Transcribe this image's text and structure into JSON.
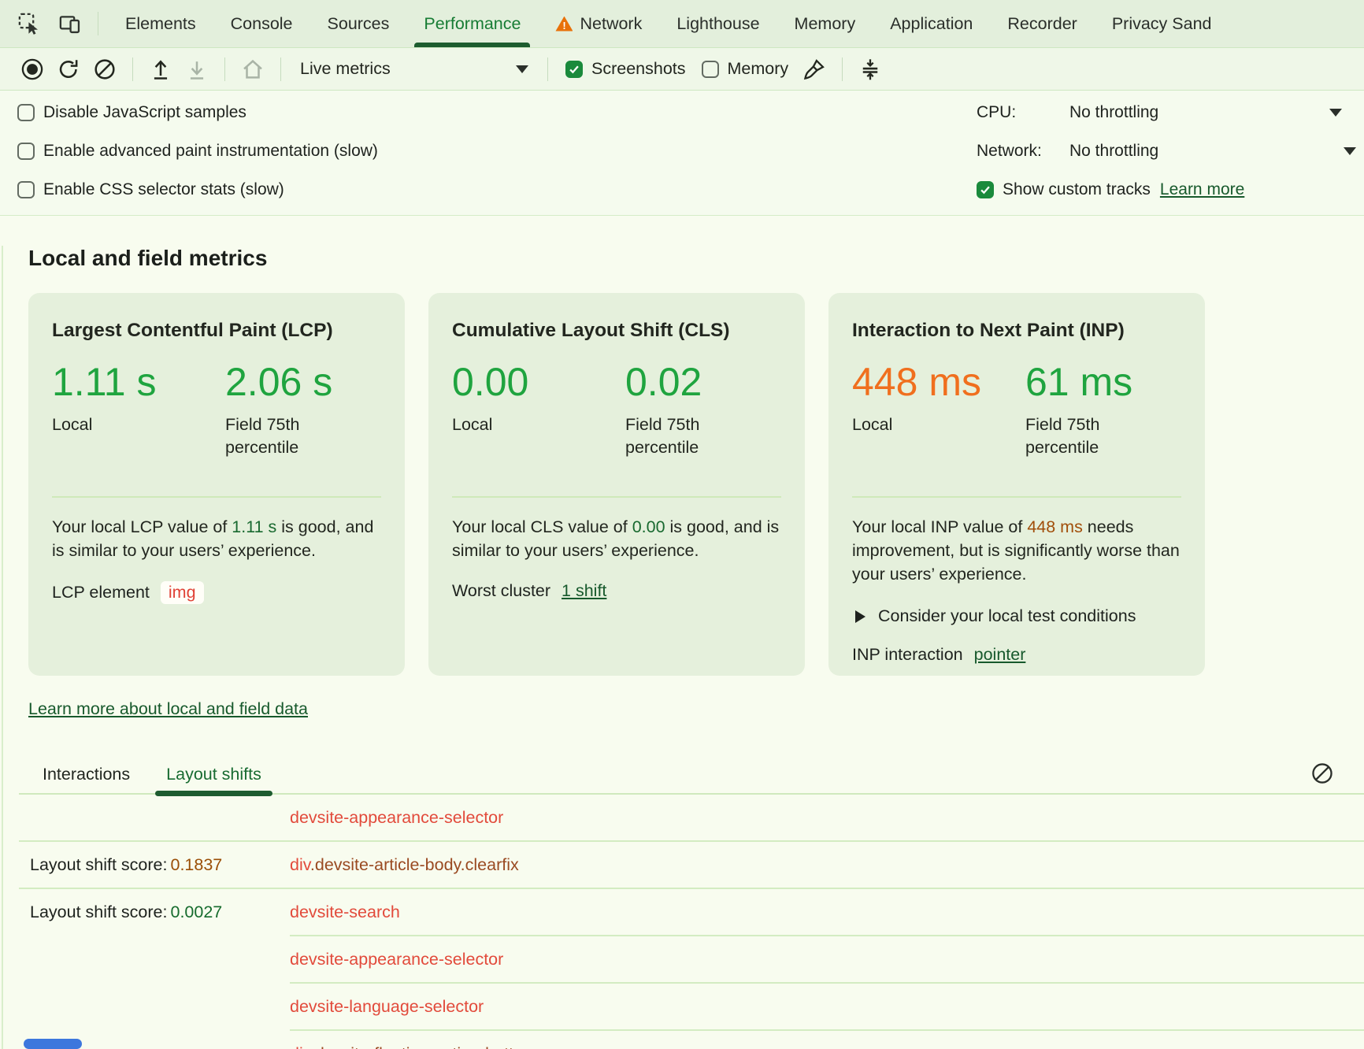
{
  "tabstrip": {
    "tabs": [
      {
        "label": "Elements"
      },
      {
        "label": "Console"
      },
      {
        "label": "Sources"
      },
      {
        "label": "Performance",
        "active": true
      },
      {
        "label": "Network",
        "warning": true
      },
      {
        "label": "Lighthouse"
      },
      {
        "label": "Memory"
      },
      {
        "label": "Application"
      },
      {
        "label": "Recorder"
      },
      {
        "label": "Privacy Sand"
      }
    ]
  },
  "toolbar": {
    "live_metrics_label": "Live metrics",
    "screenshots_label": "Screenshots",
    "memory_label": "Memory"
  },
  "settings": {
    "checkboxes": [
      "Disable JavaScript samples",
      "Enable advanced paint instrumentation (slow)",
      "Enable CSS selector stats (slow)"
    ],
    "cpu_label": "CPU:",
    "cpu_value": "No throttling",
    "network_label": "Network:",
    "network_value": "No throttling",
    "show_custom_tracks_label": "Show custom tracks",
    "learn_more_label": "Learn more"
  },
  "metrics": {
    "heading": "Local and field metrics",
    "learn_more_link": "Learn more about local and field data",
    "cards": [
      {
        "title": "Largest Contentful Paint (LCP)",
        "local_value": "1.11 s",
        "field_value": "2.06 s",
        "local_label": "Local",
        "field_label": "Field 75th percentile",
        "desc_prefix": "Your local LCP value of ",
        "desc_value": "1.11 s",
        "desc_suffix": " is good, and is similar to your users’ experience.",
        "element_label": "LCP element",
        "element_node": "img"
      },
      {
        "title": "Cumulative Layout Shift (CLS)",
        "local_value": "0.00",
        "field_value": "0.02",
        "local_label": "Local",
        "field_label": "Field 75th percentile",
        "desc_prefix": "Your local CLS value of ",
        "desc_value": "0.00",
        "desc_suffix": " is good, and is similar to your users’ experience.",
        "cluster_label": "Worst cluster",
        "cluster_link": "1 shift"
      },
      {
        "title": "Interaction to Next Paint (INP)",
        "local_value": "448 ms",
        "field_value": "61 ms",
        "local_label": "Local",
        "field_label": "Field 75th percentile",
        "desc_prefix": "Your local INP value of ",
        "desc_value": "448 ms",
        "desc_suffix": " needs improvement, but is significantly worse than your users’ experience.",
        "expander_label": "Consider your local test conditions",
        "interaction_label": "INP interaction",
        "interaction_link": "pointer"
      }
    ]
  },
  "log": {
    "tabs": [
      {
        "label": "Interactions"
      },
      {
        "label": "Layout shifts",
        "active": true
      }
    ],
    "score_label": "Layout shift score:",
    "rows": [
      {
        "selector": [
          {
            "text": "devsite-appearance-selector",
            "tone": "red"
          }
        ],
        "divider": "full"
      },
      {
        "score_value": "0.1837",
        "score_tone": "orange",
        "selector": [
          {
            "text": "div",
            "tone": "red"
          },
          {
            "text": ".devsite-article-body.clearfix",
            "tone": "brown"
          }
        ],
        "divider": "full"
      },
      {
        "score_value": "0.0027",
        "score_tone": "green",
        "selector": [
          {
            "text": "devsite-search",
            "tone": "red"
          }
        ],
        "divider": "indent"
      },
      {
        "selector": [
          {
            "text": "devsite-appearance-selector",
            "tone": "red"
          }
        ],
        "divider": "indent"
      },
      {
        "selector": [
          {
            "text": "devsite-language-selector",
            "tone": "red"
          }
        ],
        "divider": "indent"
      },
      {
        "selector": [
          {
            "text": "div",
            "tone": "red"
          },
          {
            "text": ".devsite-floating-action-buttons",
            "tone": "brown"
          }
        ],
        "divider": "none"
      }
    ]
  },
  "colors": {
    "accent_green": "#1fa43f",
    "accent_orange": "#f06f1e",
    "good_text": "#18692f",
    "needs_improvement_text": "#a14e0a",
    "link_green": "#17592c",
    "selector_red": "#e24a3b",
    "selector_brown": "#9a4a22",
    "active_tab_green": "#177c34"
  }
}
